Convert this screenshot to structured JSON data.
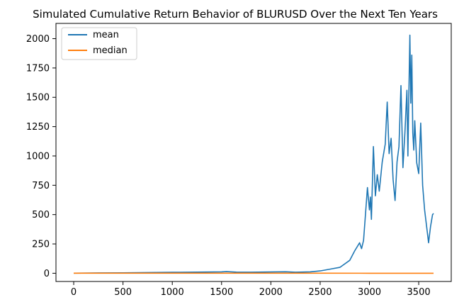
{
  "chart_data": {
    "type": "line",
    "title": "Simulated Cumulative Return Behavior of BLURUSD Over the Next Ten Years",
    "xlabel": "",
    "ylabel": "",
    "xlim": [
      -180,
      3830
    ],
    "ylim": [
      -70,
      2130
    ],
    "xticks": [
      0,
      500,
      1000,
      1500,
      2000,
      2500,
      3000,
      3500
    ],
    "yticks": [
      0,
      250,
      500,
      750,
      1000,
      1250,
      1500,
      1750,
      2000
    ],
    "grid": false,
    "legend_position": "top-left",
    "series": [
      {
        "name": "mean",
        "color": "#1f77b4",
        "x": [
          0,
          250,
          500,
          750,
          1000,
          1250,
          1500,
          1550,
          1650,
          1800,
          2000,
          2150,
          2250,
          2400,
          2500,
          2600,
          2700,
          2800,
          2850,
          2900,
          2920,
          2940,
          2960,
          2980,
          3000,
          3010,
          3020,
          3040,
          3060,
          3080,
          3100,
          3130,
          3160,
          3180,
          3200,
          3220,
          3240,
          3260,
          3280,
          3300,
          3320,
          3340,
          3360,
          3380,
          3390,
          3400,
          3410,
          3420,
          3430,
          3440,
          3450,
          3460,
          3480,
          3500,
          3520,
          3540,
          3560,
          3580,
          3600,
          3620,
          3640,
          3650
        ],
        "values": [
          1,
          3,
          4,
          6,
          8,
          10,
          12,
          14,
          10,
          9,
          11,
          13,
          9,
          12,
          20,
          35,
          50,
          110,
          190,
          260,
          210,
          280,
          500,
          730,
          540,
          650,
          460,
          1080,
          660,
          840,
          700,
          950,
          1100,
          1460,
          1020,
          1150,
          800,
          620,
          950,
          1080,
          1600,
          900,
          1200,
          1560,
          1000,
          1540,
          2030,
          1450,
          1860,
          1200,
          1050,
          1300,
          940,
          850,
          1280,
          750,
          540,
          400,
          260,
          400,
          500,
          510
        ]
      },
      {
        "name": "median",
        "color": "#ff7f0e",
        "x": [
          0,
          500,
          1000,
          1500,
          2000,
          2500,
          3000,
          3500,
          3650
        ],
        "values": [
          0.5,
          0.6,
          0.7,
          0.6,
          0.5,
          0.5,
          0.4,
          0.4,
          0.4
        ]
      }
    ]
  }
}
